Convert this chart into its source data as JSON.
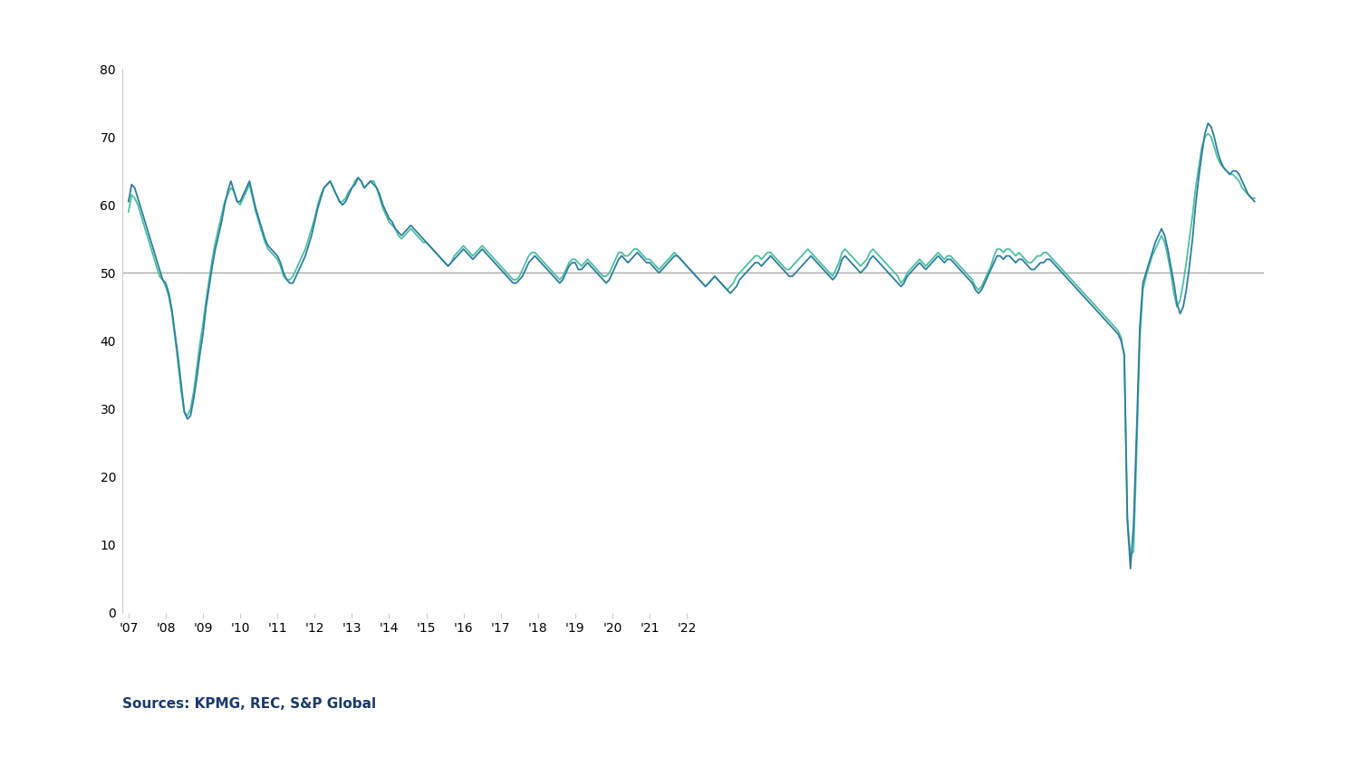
{
  "source_text": "Sources: KPMG, REC, S&P Global",
  "ylim": [
    0,
    80
  ],
  "yticks": [
    0,
    10,
    20,
    30,
    40,
    50,
    60,
    70,
    80
  ],
  "reference_line": 50,
  "line1_color": "#2e7d9e",
  "line2_color": "#4dbf9f",
  "background_color": "#ffffff",
  "perm_placements": [
    60.5,
    63.0,
    62.5,
    61.0,
    59.5,
    58.0,
    56.5,
    55.0,
    53.5,
    52.0,
    50.5,
    49.0,
    48.5,
    47.0,
    44.5,
    41.0,
    37.5,
    33.5,
    29.5,
    28.5,
    29.0,
    31.5,
    34.5,
    38.0,
    41.0,
    45.0,
    48.0,
    51.0,
    53.5,
    55.5,
    57.5,
    60.0,
    62.0,
    63.5,
    62.0,
    60.5,
    60.5,
    61.5,
    62.5,
    63.5,
    61.5,
    59.5,
    58.0,
    56.5,
    55.0,
    54.0,
    53.5,
    53.0,
    52.5,
    51.5,
    50.0,
    49.0,
    48.5,
    48.5,
    49.5,
    50.5,
    51.5,
    52.5,
    54.0,
    55.5,
    57.5,
    59.5,
    61.0,
    62.5,
    63.0,
    63.5,
    62.5,
    61.5,
    60.5,
    60.0,
    60.5,
    61.5,
    62.5,
    63.0,
    64.0,
    63.5,
    62.5,
    63.0,
    63.5,
    63.0,
    62.5,
    61.5,
    60.0,
    59.0,
    58.0,
    57.5,
    56.5,
    56.0,
    55.5,
    56.0,
    56.5,
    57.0,
    56.5,
    56.0,
    55.5,
    55.0,
    54.5,
    54.0,
    53.5,
    53.0,
    52.5,
    52.0,
    51.5,
    51.0,
    51.5,
    52.0,
    52.5,
    53.0,
    53.5,
    53.0,
    52.5,
    52.0,
    52.5,
    53.0,
    53.5,
    53.0,
    52.5,
    52.0,
    51.5,
    51.0,
    50.5,
    50.0,
    49.5,
    49.0,
    48.5,
    48.5,
    49.0,
    49.5,
    50.5,
    51.5,
    52.0,
    52.5,
    52.0,
    51.5,
    51.0,
    50.5,
    50.0,
    49.5,
    49.0,
    48.5,
    49.0,
    50.0,
    51.0,
    51.5,
    51.5,
    50.5,
    50.5,
    51.0,
    51.5,
    51.0,
    50.5,
    50.0,
    49.5,
    49.0,
    48.5,
    49.0,
    50.0,
    51.0,
    52.0,
    52.5,
    52.0,
    51.5,
    52.0,
    52.5,
    53.0,
    52.5,
    52.0,
    51.5,
    51.5,
    51.0,
    50.5,
    50.0,
    50.5,
    51.0,
    51.5,
    52.0,
    52.5,
    52.5,
    52.0,
    51.5,
    51.0,
    50.5,
    50.0,
    49.5,
    49.0,
    48.5,
    48.0,
    48.5,
    49.0,
    49.5,
    49.0,
    48.5,
    48.0,
    47.5,
    47.0,
    47.5,
    48.0,
    49.0,
    49.5,
    50.0,
    50.5,
    51.0,
    51.5,
    51.5,
    51.0,
    51.5,
    52.0,
    52.5,
    52.0,
    51.5,
    51.0,
    50.5,
    50.0,
    49.5,
    49.5,
    50.0,
    50.5,
    51.0,
    51.5,
    52.0,
    52.5,
    52.0,
    51.5,
    51.0,
    50.5,
    50.0,
    49.5,
    49.0,
    49.5,
    50.5,
    52.0,
    52.5,
    52.0,
    51.5,
    51.0,
    50.5,
    50.0,
    50.5,
    51.0,
    52.0,
    52.5,
    52.0,
    51.5,
    51.0,
    50.5,
    50.0,
    49.5,
    49.0,
    48.5,
    48.0,
    48.5,
    49.5,
    50.0,
    50.5,
    51.0,
    51.5,
    51.0,
    50.5,
    51.0,
    51.5,
    52.0,
    52.5,
    52.0,
    51.5,
    52.0,
    52.0,
    51.5,
    51.0,
    50.5,
    50.0,
    49.5,
    49.0,
    48.5,
    47.5,
    47.0,
    47.5,
    48.5,
    49.5,
    50.5,
    51.5,
    52.5,
    52.5,
    52.0,
    52.5,
    52.5,
    52.0,
    51.5,
    52.0,
    52.0,
    51.5,
    51.0,
    50.5,
    50.5,
    51.0,
    51.5,
    51.5,
    52.0,
    52.0,
    51.5,
    51.0,
    50.5,
    50.0,
    49.5,
    49.0,
    48.5,
    48.0,
    47.5,
    47.0,
    46.5,
    46.0,
    45.5,
    45.0,
    44.5,
    44.0,
    43.5,
    43.0,
    42.5,
    42.0,
    41.5,
    41.0,
    40.0,
    38.0,
    13.5,
    6.5,
    13.0,
    27.0,
    42.0,
    48.5,
    50.0,
    51.5,
    53.0,
    54.5,
    55.5,
    56.5,
    55.5,
    53.5,
    51.0,
    48.5,
    45.5,
    44.0,
    45.0,
    47.5,
    51.0,
    55.0,
    60.0,
    64.0,
    67.5,
    70.5,
    72.0,
    71.5,
    70.0,
    68.0,
    66.5,
    65.5,
    65.0,
    64.5,
    65.0,
    65.0,
    64.5,
    63.5,
    62.5,
    61.5,
    61.0,
    60.5
  ],
  "temp_billings": [
    59.0,
    61.5,
    61.0,
    60.0,
    58.5,
    57.0,
    55.5,
    54.0,
    52.5,
    51.0,
    49.5,
    49.0,
    48.0,
    46.5,
    44.0,
    40.5,
    36.5,
    32.5,
    29.5,
    29.0,
    30.0,
    32.5,
    36.0,
    39.5,
    42.5,
    46.0,
    49.0,
    52.0,
    54.5,
    56.5,
    58.5,
    60.5,
    61.5,
    62.5,
    62.0,
    60.5,
    60.0,
    61.0,
    62.0,
    63.0,
    61.0,
    59.0,
    57.5,
    56.0,
    54.5,
    53.5,
    53.0,
    52.5,
    52.0,
    51.0,
    49.5,
    49.0,
    49.0,
    49.5,
    50.5,
    51.5,
    52.5,
    53.5,
    55.0,
    56.5,
    58.0,
    60.0,
    61.5,
    62.5,
    63.0,
    63.5,
    62.5,
    61.5,
    60.5,
    60.5,
    61.0,
    62.0,
    62.5,
    63.5,
    64.0,
    63.5,
    62.5,
    63.0,
    63.5,
    63.5,
    62.5,
    61.0,
    59.5,
    58.5,
    57.5,
    57.0,
    56.5,
    55.5,
    55.0,
    55.5,
    56.0,
    56.5,
    56.0,
    55.5,
    55.0,
    54.5,
    54.5,
    54.0,
    53.5,
    53.0,
    52.5,
    52.0,
    51.5,
    51.0,
    51.5,
    52.5,
    53.0,
    53.5,
    54.0,
    53.5,
    53.0,
    52.5,
    53.0,
    53.5,
    54.0,
    53.5,
    53.0,
    52.5,
    52.0,
    51.5,
    51.0,
    50.5,
    50.0,
    49.5,
    49.0,
    49.0,
    49.5,
    50.5,
    51.5,
    52.5,
    53.0,
    53.0,
    52.5,
    52.0,
    51.5,
    51.0,
    50.5,
    50.0,
    49.5,
    49.0,
    49.5,
    50.5,
    51.5,
    52.0,
    52.0,
    51.5,
    51.0,
    51.5,
    52.0,
    51.5,
    51.0,
    50.5,
    50.0,
    49.5,
    49.5,
    50.0,
    51.0,
    52.0,
    53.0,
    53.0,
    52.5,
    52.5,
    53.0,
    53.5,
    53.5,
    53.0,
    52.5,
    52.0,
    52.0,
    51.5,
    51.0,
    50.5,
    51.0,
    51.5,
    52.0,
    52.5,
    53.0,
    52.5,
    52.0,
    51.5,
    51.0,
    50.5,
    50.0,
    49.5,
    49.0,
    48.5,
    48.0,
    48.5,
    49.0,
    49.5,
    49.0,
    48.5,
    48.0,
    47.5,
    48.0,
    48.5,
    49.5,
    50.0,
    50.5,
    51.0,
    51.5,
    52.0,
    52.5,
    52.5,
    52.0,
    52.5,
    53.0,
    53.0,
    52.5,
    52.0,
    51.5,
    51.0,
    50.5,
    50.5,
    51.0,
    51.5,
    52.0,
    52.5,
    53.0,
    53.5,
    53.0,
    52.5,
    52.0,
    51.5,
    51.0,
    50.5,
    50.0,
    49.5,
    50.5,
    51.5,
    53.0,
    53.5,
    53.0,
    52.5,
    52.0,
    51.5,
    51.0,
    51.5,
    52.0,
    53.0,
    53.5,
    53.0,
    52.5,
    52.0,
    51.5,
    51.0,
    50.5,
    50.0,
    49.5,
    48.5,
    49.0,
    50.0,
    50.5,
    51.0,
    51.5,
    52.0,
    51.5,
    51.0,
    51.5,
    52.0,
    52.5,
    53.0,
    52.5,
    52.0,
    52.5,
    52.5,
    52.0,
    51.5,
    51.0,
    50.5,
    50.0,
    49.5,
    49.0,
    48.0,
    47.5,
    48.0,
    49.0,
    50.0,
    51.0,
    52.5,
    53.5,
    53.5,
    53.0,
    53.5,
    53.5,
    53.0,
    52.5,
    53.0,
    52.5,
    52.0,
    51.5,
    51.5,
    52.0,
    52.5,
    52.5,
    53.0,
    53.0,
    52.5,
    52.0,
    51.5,
    51.0,
    50.5,
    50.0,
    49.5,
    49.0,
    48.5,
    48.0,
    47.5,
    47.0,
    46.5,
    46.0,
    45.5,
    45.0,
    44.5,
    44.0,
    43.5,
    43.0,
    42.5,
    42.0,
    41.5,
    40.5,
    37.5,
    14.0,
    8.5,
    9.0,
    24.0,
    40.0,
    47.5,
    49.5,
    51.0,
    52.5,
    53.5,
    54.5,
    55.5,
    54.5,
    52.5,
    50.0,
    47.0,
    45.0,
    46.0,
    48.5,
    51.5,
    55.0,
    58.5,
    62.5,
    65.5,
    68.5,
    70.0,
    70.5,
    70.0,
    68.5,
    67.0,
    66.0,
    65.5,
    65.0,
    64.5,
    64.5,
    64.0,
    63.5,
    62.5,
    62.0,
    61.5,
    61.0,
    61.0
  ],
  "x_tick_labels": [
    "'07",
    "'08",
    "'09",
    "'10",
    "'11",
    "'12",
    "'13",
    "'14",
    "'15",
    "'16",
    "'17",
    "'18",
    "'19",
    "'20",
    "'21",
    "'22"
  ],
  "n_months_per_year": 12,
  "total_years": 16
}
